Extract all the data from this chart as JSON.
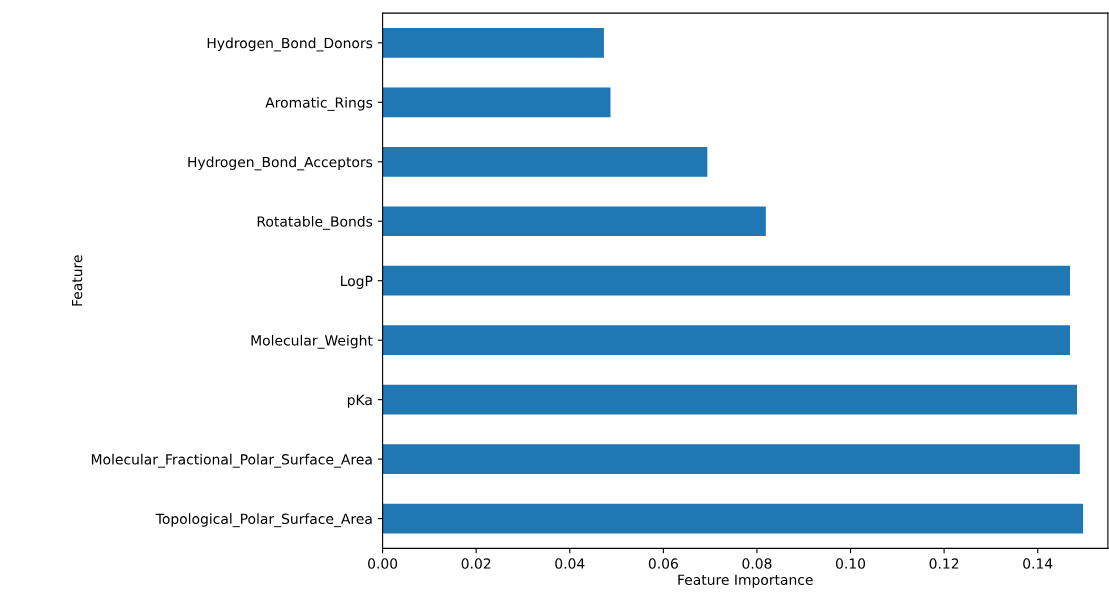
{
  "chart_data": {
    "type": "bar",
    "orientation": "horizontal",
    "xlabel": "Feature Importance",
    "ylabel": "Feature",
    "categories": [
      "Hydrogen_Bond_Donors",
      "Aromatic_Rings",
      "Hydrogen_Bond_Acceptors",
      "Rotatable_Bonds",
      "LogP",
      "Molecular_Weight",
      "pKa",
      "Molecular_Fractional_Polar_Surface_Area",
      "Topological_Polar_Surface_Area"
    ],
    "values": [
      0.0473,
      0.0487,
      0.0694,
      0.0819,
      0.1469,
      0.1469,
      0.1484,
      0.149,
      0.1497
    ],
    "color": "#1f77b4",
    "xlim": [
      0,
      0.155
    ],
    "xticks": [
      {
        "value": 0,
        "label": "0.00"
      },
      {
        "value": 0.02,
        "label": "0.02"
      },
      {
        "value": 0.04,
        "label": "0.04"
      },
      {
        "value": 0.06,
        "label": "0.06"
      },
      {
        "value": 0.08,
        "label": "0.08"
      },
      {
        "value": 0.1,
        "label": "0.10"
      },
      {
        "value": 0.12,
        "label": "0.12"
      },
      {
        "value": 0.14,
        "label": "0.14"
      }
    ],
    "grid": false
  }
}
